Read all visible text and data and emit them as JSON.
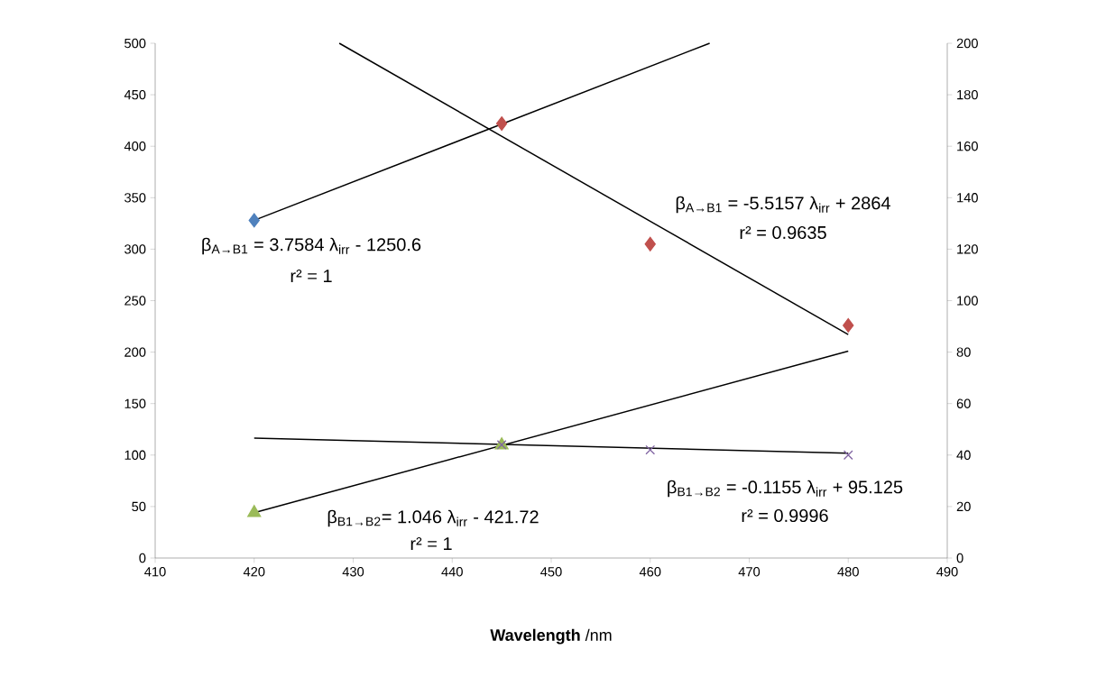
{
  "chart_data": {
    "type": "scatter",
    "xlabel": "**Wavelength** /nm",
    "xlim": [
      410,
      490
    ],
    "xticks": [
      410,
      420,
      430,
      440,
      450,
      460,
      470,
      480,
      490
    ],
    "ylim": [
      0,
      500
    ],
    "yticks": [
      0,
      50,
      100,
      150,
      200,
      250,
      300,
      350,
      400,
      450,
      500
    ],
    "y2lim": [
      0,
      200
    ],
    "y2ticks": [
      0,
      20,
      40,
      60,
      80,
      100,
      120,
      140,
      160,
      180,
      200
    ],
    "series": [
      {
        "color": "#4f81bd",
        "marker": "diamond",
        "x": [
          420
        ],
        "values": [
          328
        ]
      },
      {
        "color": "#c0504d",
        "marker": "diamond",
        "x": [
          445,
          460,
          480
        ],
        "values": [
          422,
          305,
          226
        ]
      },
      {
        "color": "#9bbb59",
        "marker": "triangle",
        "axis": "y2",
        "x": [
          420,
          445
        ],
        "values": [
          17.6,
          43.8
        ]
      },
      {
        "color": "#8064a2",
        "marker": "cross",
        "axis": "y2",
        "x": [
          445,
          460,
          480
        ],
        "values": [
          44,
          42,
          40
        ]
      },
      {
        "type": "line",
        "color": "#000000",
        "line_style": "solid",
        "x": [
          420,
          466
        ],
        "values": [
          328,
          500
        ]
      },
      {
        "type": "line",
        "color": "#000000",
        "line_style": "solid",
        "x": [
          428.6,
          480
        ],
        "values": [
          500,
          217
        ]
      },
      {
        "type": "line",
        "color": "#000000",
        "line_style": "solid",
        "axis": "y2",
        "x": [
          420,
          480
        ],
        "values": [
          17.6,
          80.4
        ]
      },
      {
        "type": "line",
        "color": "#000000",
        "line_style": "solid",
        "axis": "y2",
        "x": [
          420,
          480
        ],
        "values": [
          46.6,
          40.7
        ]
      }
    ],
    "annotations": [
      "β$_{A→B1}$ = 3.7584 λ$_{irr}$ - 1250.6",
      "r² = 1",
      "β$_{A→B1}$ = -5.5157 λ$_{irr}$  + 2864",
      "r² = 0.9635",
      "β$_{B1→B2}$ = -0.1155 λ$_{irr}$ + 95.125",
      "r² = 0.9996",
      "β$_{B1→B2}$= 1.046 λ$_{irr}$ - 421.72",
      "r² = 1"
    ]
  }
}
